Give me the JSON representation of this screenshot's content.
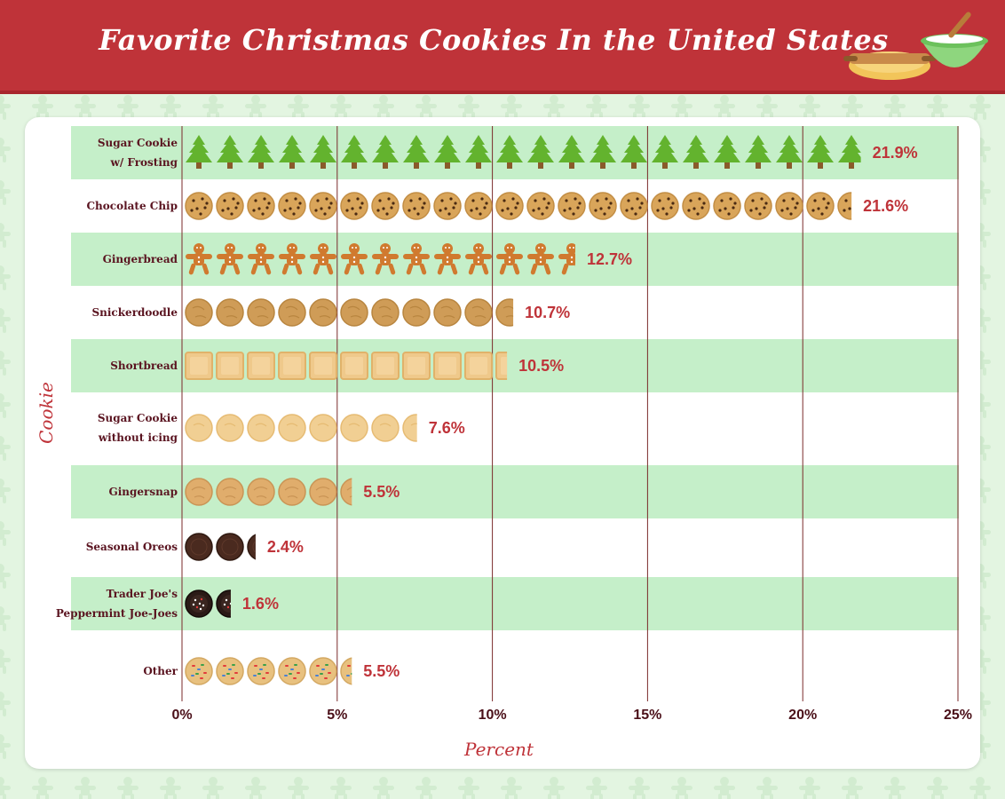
{
  "title": "Favorite Christmas Cookies In the United States",
  "colors": {
    "banner": "#bf3339",
    "band": "#c5efc9",
    "grid": "#7a2a2a",
    "value_label": "#bf3339"
  },
  "decoration": {
    "icons": [
      "rolling-pin-icon",
      "mixing-bowl-icon"
    ]
  },
  "chart_data": {
    "type": "bar",
    "orientation": "horizontal",
    "title": "Favorite Christmas Cookies In the United States",
    "xlabel": "Percent",
    "ylabel": "Cookie",
    "xlim": [
      0,
      25
    ],
    "xticks": [
      0,
      5,
      10,
      15,
      20,
      25
    ],
    "xtick_labels": [
      "0%",
      "5%",
      "10%",
      "15%",
      "20%",
      "25%"
    ],
    "categories": [
      {
        "label": [
          "Sugar Cookie",
          "w/ Frosting"
        ],
        "icon": "tree-icon"
      },
      {
        "label": [
          "Chocolate Chip"
        ],
        "icon": "chocolate-chip-cookie-icon"
      },
      {
        "label": [
          "Gingerbread"
        ],
        "icon": "gingerbread-man-icon"
      },
      {
        "label": [
          "Snickerdoodle"
        ],
        "icon": "snickerdoodle-icon"
      },
      {
        "label": [
          "Shortbread"
        ],
        "icon": "shortbread-icon"
      },
      {
        "label": [
          "Sugar Cookie",
          "without icing"
        ],
        "icon": "sugar-cookie-icon"
      },
      {
        "label": [
          "Gingersnap"
        ],
        "icon": "gingersnap-icon"
      },
      {
        "label": [
          "Seasonal Oreos"
        ],
        "icon": "oreo-icon"
      },
      {
        "label": [
          "Trader Joe's",
          "Peppermint Joe-Joes"
        ],
        "icon": "joe-joe-icon"
      },
      {
        "label": [
          "Other"
        ],
        "icon": "sprinkle-cookie-icon"
      }
    ],
    "values": [
      21.9,
      21.6,
      12.7,
      10.7,
      10.5,
      7.6,
      5.5,
      2.4,
      1.6,
      5.5
    ],
    "value_labels": [
      "21.9%",
      "21.6%",
      "12.7%",
      "10.7%",
      "10.5%",
      "7.6%",
      "5.5%",
      "2.4%",
      "1.6%",
      "5.5%"
    ],
    "grid": true,
    "legend": "none"
  }
}
